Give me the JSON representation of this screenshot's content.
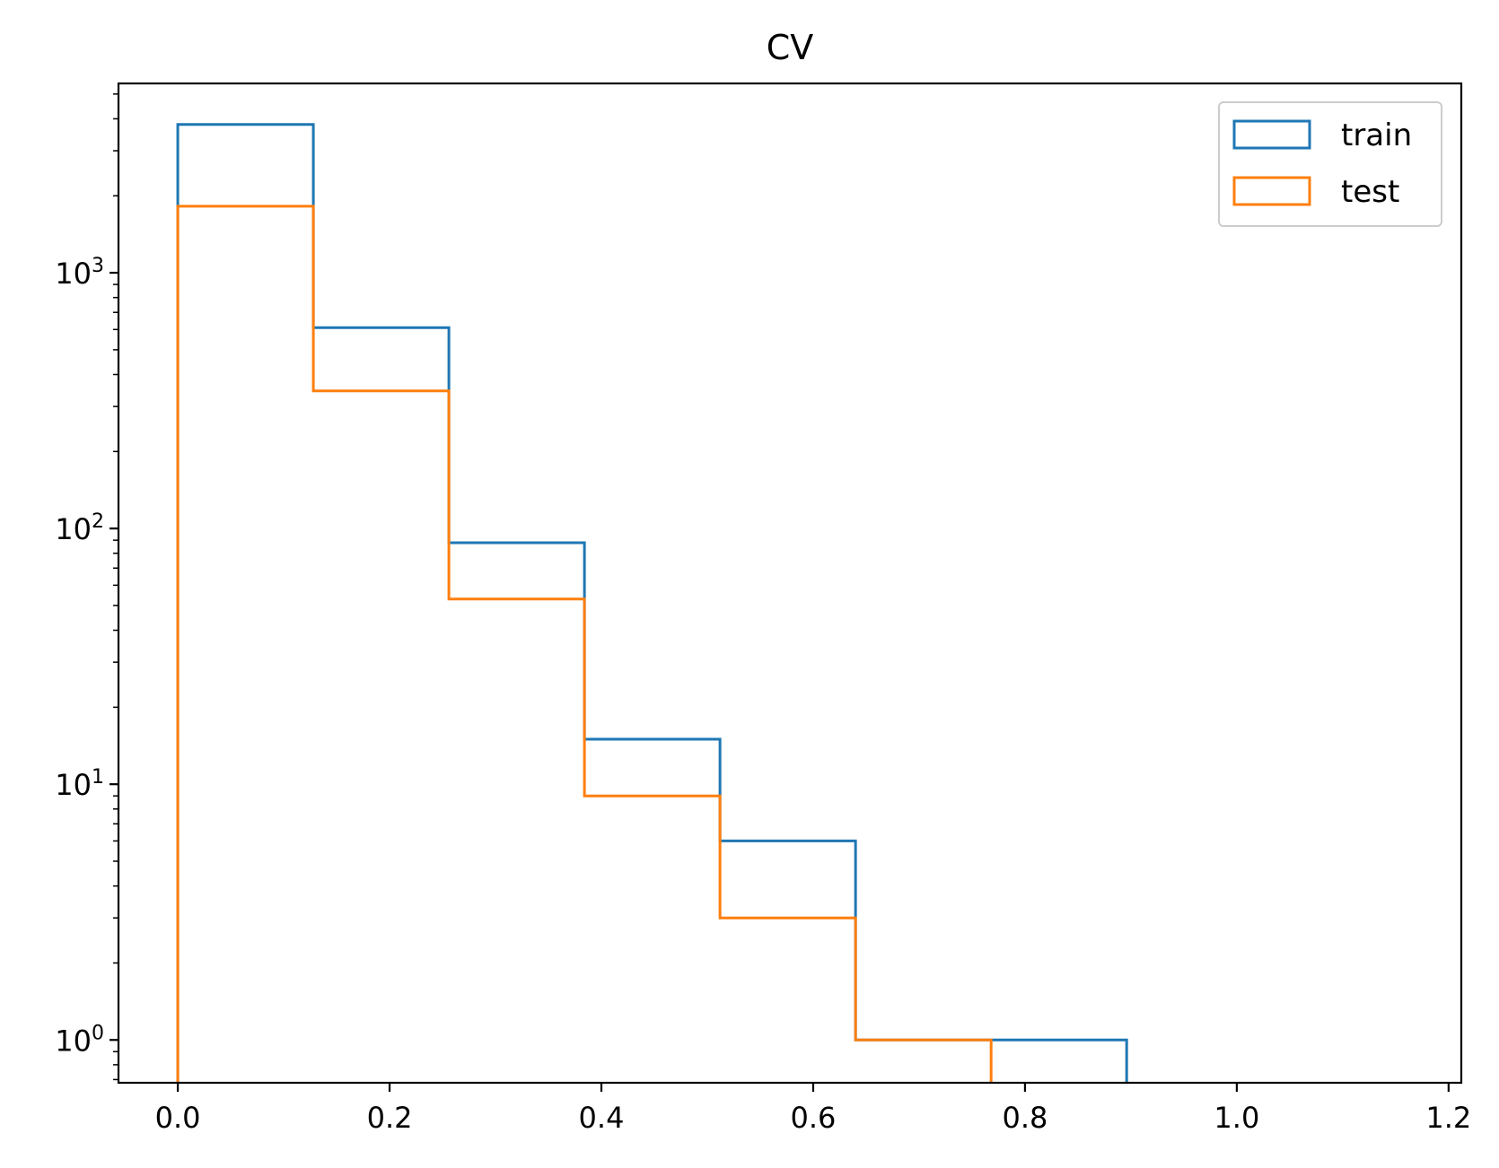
{
  "chart_data": {
    "type": "histogram",
    "title": "CV",
    "xlabel": "",
    "ylabel": "",
    "xlim": [
      -0.056,
      1.212
    ],
    "ylim": [
      0.68,
      5500
    ],
    "yscale": "log",
    "grid": false,
    "legend_position": "top-right",
    "x_ticks": [
      0.0,
      0.2,
      0.4,
      0.6,
      0.8,
      1.0,
      1.2
    ],
    "x_tick_labels": [
      "0.0",
      "0.2",
      "0.4",
      "0.6",
      "0.8",
      "1.0",
      "1.2"
    ],
    "y_ticks": [
      {
        "value": 1,
        "base": "10",
        "exp": "0"
      },
      {
        "value": 10,
        "base": "10",
        "exp": "1"
      },
      {
        "value": 100,
        "base": "10",
        "exp": "2"
      },
      {
        "value": 1000,
        "base": "10",
        "exp": "3"
      }
    ],
    "bin_edges": [
      0.0,
      0.128,
      0.256,
      0.384,
      0.512,
      0.64,
      0.768,
      0.896,
      1.024,
      1.152
    ],
    "series": [
      {
        "name": "train",
        "color": "#1f77b4",
        "values": [
          3800,
          610,
          88,
          15,
          6,
          1,
          1,
          0,
          0
        ]
      },
      {
        "name": "test",
        "color": "#ff7f0e",
        "values": [
          1820,
          345,
          53,
          9,
          3,
          1,
          0,
          0,
          0
        ]
      }
    ]
  }
}
